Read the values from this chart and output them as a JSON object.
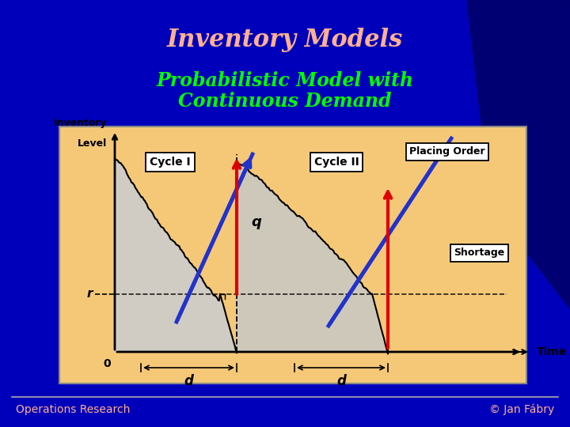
{
  "title": "Inventory Models",
  "subtitle_line1": "Probabilistic Model with",
  "subtitle_line2": "Continuous Demand",
  "title_color": "#FFB090",
  "subtitle_color": "#00FF00",
  "bg_color": "#0000BB",
  "panel_color": "#F5C878",
  "axis_label_x": "Time",
  "axis_label_y_line1": "Inventory",
  "axis_label_y_line2": "Level",
  "label_r": "r",
  "label_q": "q",
  "label_0": "0",
  "label_d1": "d",
  "label_d2": "d",
  "label_cycle1": "Cycle I",
  "label_cycle2": "Cycle II",
  "label_placing": "Placing Order",
  "label_shortage": "Shortage",
  "footer_left": "Operations Research",
  "footer_right": "© Jan Fábry",
  "footer_color": "#FFB090",
  "blue_line_color": "#2233CC",
  "red_arrow_color": "#DD0000",
  "curve_fill_color": "#CCCCCC",
  "shortage_fill_color": "#C8C8C8"
}
